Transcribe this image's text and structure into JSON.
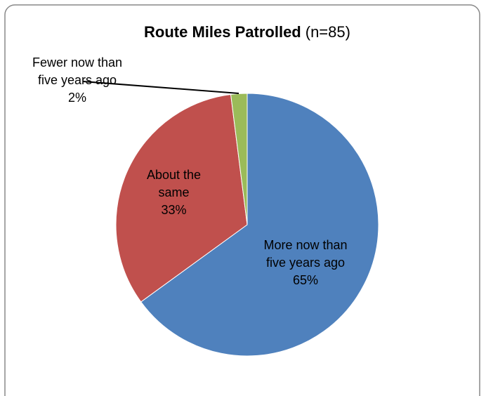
{
  "chart_data": {
    "type": "pie",
    "title": "Route Miles Patrolled",
    "subtitle": "(n=85)",
    "categories": [
      "More now than five years ago",
      "About the same",
      "Fewer now than five years ago"
    ],
    "values": [
      65,
      33,
      2
    ],
    "value_labels": [
      "65%",
      "33%",
      "2%"
    ],
    "colors": [
      "#4f81bd",
      "#c0504d",
      "#9bbb59"
    ]
  }
}
